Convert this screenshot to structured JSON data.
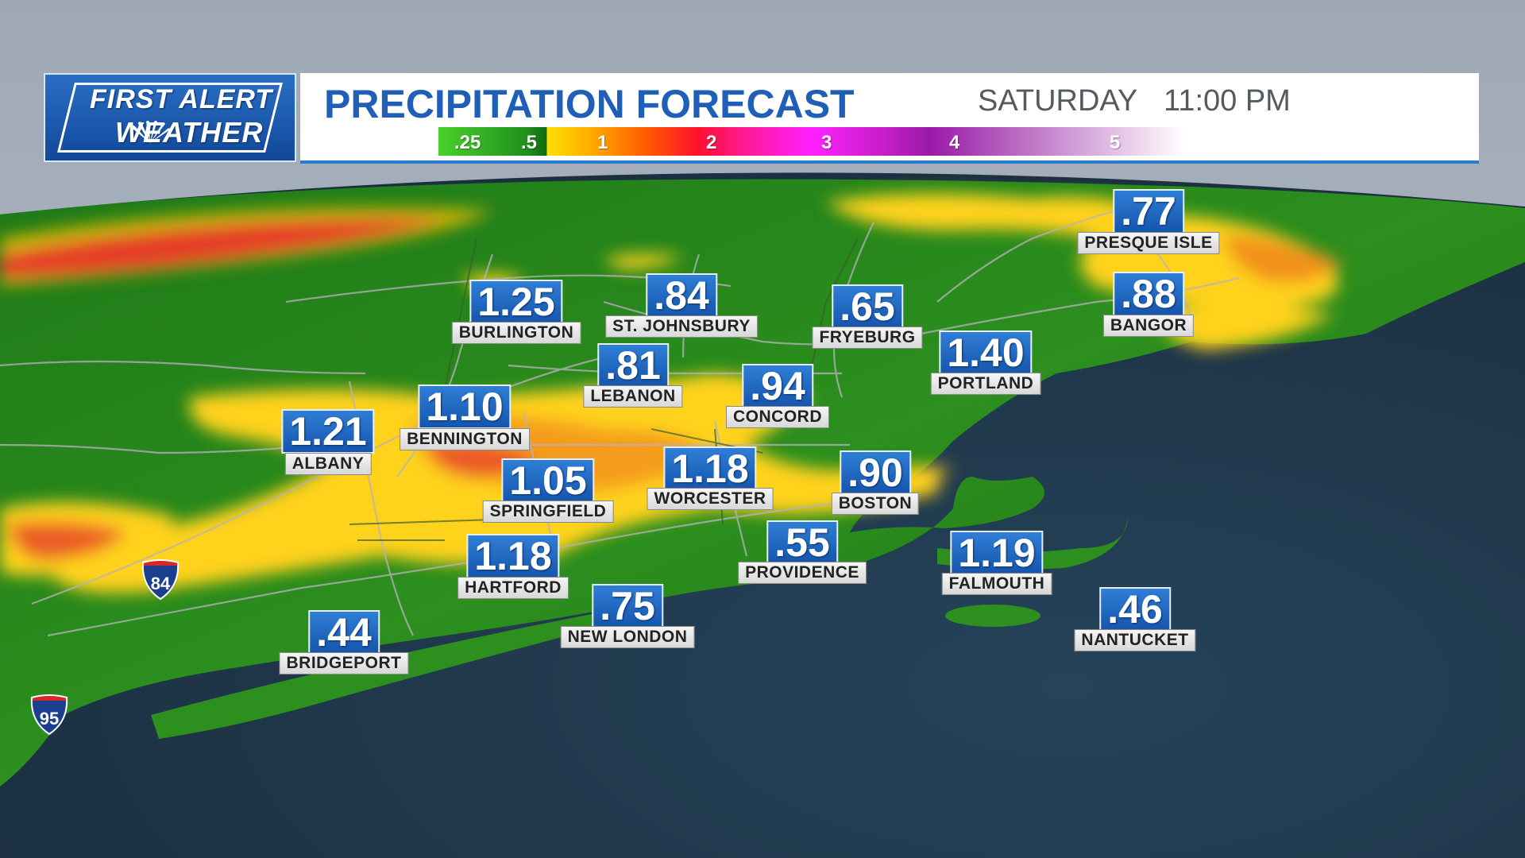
{
  "logo": {
    "line1": "FIRST ALERT",
    "line2": "WEATHER"
  },
  "header": {
    "title": "PRECIPITATION FORECAST",
    "day": "SATURDAY",
    "time": "11:00 PM"
  },
  "scale": {
    "labels": [
      ".25",
      ".5",
      "1",
      "2",
      "3",
      "4",
      "5"
    ]
  },
  "colors": {
    "ocean": "#22394a",
    "land_green": "#2f8f1f",
    "yellow": "#ffd21a",
    "orange": "#f58b1c",
    "red": "#e8322a",
    "brand_blue": "#1f5fb8"
  },
  "cities": [
    {
      "name": "PRESQUE ISLE",
      "value": ".77"
    },
    {
      "name": "BURLINGTON",
      "value": "1.25"
    },
    {
      "name": "ST. JOHNSBURY",
      "value": ".84"
    },
    {
      "name": "FRYEBURG",
      "value": ".65"
    },
    {
      "name": "BANGOR",
      "value": ".88"
    },
    {
      "name": "LEBANON",
      "value": ".81"
    },
    {
      "name": "PORTLAND",
      "value": "1.40"
    },
    {
      "name": "CONCORD",
      "value": ".94"
    },
    {
      "name": "BENNINGTON",
      "value": "1.10"
    },
    {
      "name": "ALBANY",
      "value": "1.21"
    },
    {
      "name": "SPRINGFIELD",
      "value": "1.05"
    },
    {
      "name": "WORCESTER",
      "value": "1.18"
    },
    {
      "name": "BOSTON",
      "value": ".90"
    },
    {
      "name": "PROVIDENCE",
      "value": ".55"
    },
    {
      "name": "HARTFORD",
      "value": "1.18"
    },
    {
      "name": "FALMOUTH",
      "value": "1.19"
    },
    {
      "name": "NEW LONDON",
      "value": ".75"
    },
    {
      "name": "NANTUCKET",
      "value": ".46"
    },
    {
      "name": "BRIDGEPORT",
      "value": ".44"
    }
  ],
  "highways": [
    {
      "icon": "interstate-shield-icon",
      "label": "INTERSTATE",
      "number": "84"
    },
    {
      "icon": "interstate-shield-icon",
      "label": "INTERSTATE",
      "number": "95"
    }
  ]
}
